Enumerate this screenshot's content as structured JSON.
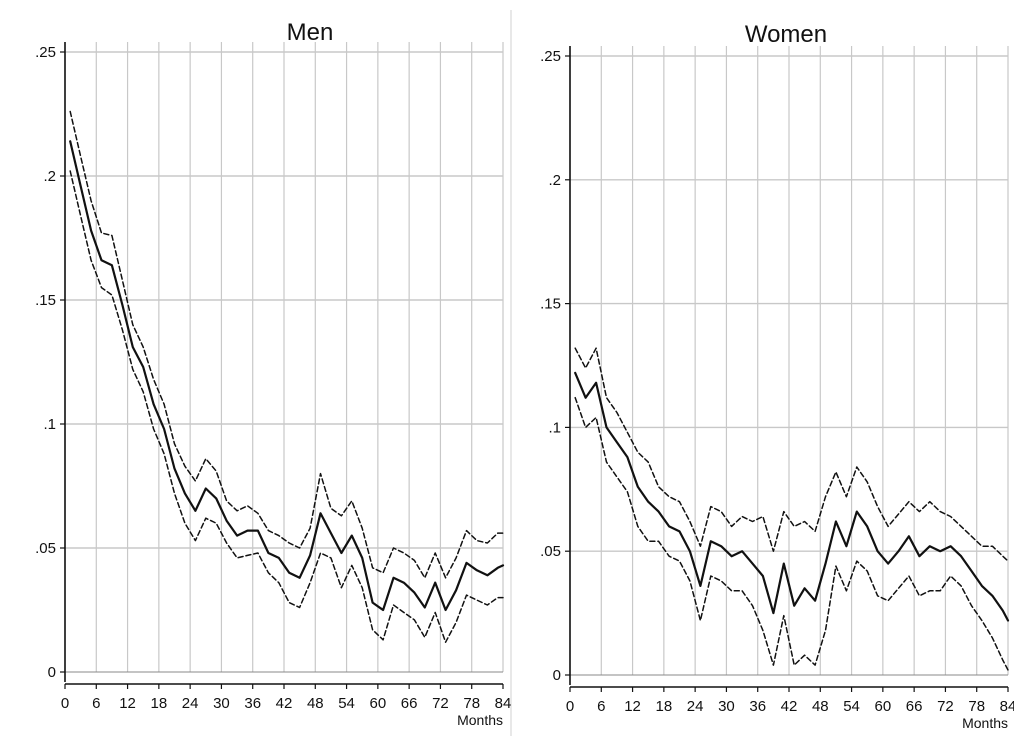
{
  "chart_data": [
    {
      "type": "line",
      "title": "Men",
      "xlabel": "Months",
      "ylabel": "",
      "xlim": [
        0,
        84
      ],
      "ylim": [
        0,
        0.25
      ],
      "xticks": [
        "0",
        "6",
        "12",
        "18",
        "24",
        "30",
        "36",
        "42",
        "48",
        "54",
        "60",
        "66",
        "72",
        "78",
        "84"
      ],
      "yticks": [
        "0",
        ".05",
        ".1",
        ".15",
        ".2",
        ".25"
      ],
      "grid": true,
      "x": [
        1,
        3,
        5,
        7,
        9,
        11,
        13,
        15,
        17,
        19,
        21,
        23,
        25,
        27,
        29,
        31,
        33,
        35,
        37,
        39,
        41,
        43,
        45,
        47,
        49,
        51,
        53,
        55,
        57,
        59,
        61,
        63,
        65,
        67,
        69,
        71,
        73,
        75,
        77,
        79,
        81,
        83,
        84
      ],
      "series": [
        {
          "role": "estimate",
          "values": [
            0.214,
            0.196,
            0.178,
            0.166,
            0.164,
            0.148,
            0.131,
            0.123,
            0.108,
            0.098,
            0.082,
            0.072,
            0.065,
            0.074,
            0.07,
            0.061,
            0.055,
            0.057,
            0.057,
            0.048,
            0.046,
            0.04,
            0.038,
            0.047,
            0.064,
            0.056,
            0.048,
            0.055,
            0.046,
            0.028,
            0.025,
            0.038,
            0.036,
            0.032,
            0.026,
            0.036,
            0.025,
            0.033,
            0.044,
            0.041,
            0.039,
            0.042,
            0.043
          ]
        },
        {
          "role": "upper",
          "values": [
            0.226,
            0.208,
            0.19,
            0.177,
            0.176,
            0.158,
            0.14,
            0.131,
            0.118,
            0.108,
            0.092,
            0.083,
            0.077,
            0.086,
            0.081,
            0.069,
            0.065,
            0.067,
            0.064,
            0.057,
            0.055,
            0.052,
            0.05,
            0.058,
            0.08,
            0.066,
            0.063,
            0.069,
            0.058,
            0.042,
            0.04,
            0.05,
            0.048,
            0.045,
            0.038,
            0.048,
            0.038,
            0.046,
            0.057,
            0.053,
            0.052,
            0.056,
            0.056
          ]
        },
        {
          "role": "lower",
          "values": [
            0.202,
            0.184,
            0.166,
            0.155,
            0.152,
            0.138,
            0.122,
            0.113,
            0.098,
            0.088,
            0.072,
            0.06,
            0.053,
            0.062,
            0.06,
            0.052,
            0.046,
            0.047,
            0.048,
            0.04,
            0.036,
            0.028,
            0.026,
            0.036,
            0.048,
            0.046,
            0.034,
            0.043,
            0.034,
            0.017,
            0.013,
            0.027,
            0.024,
            0.021,
            0.014,
            0.024,
            0.012,
            0.02,
            0.031,
            0.029,
            0.027,
            0.03,
            0.03
          ]
        }
      ]
    },
    {
      "type": "line",
      "title": "Women",
      "xlabel": "Months",
      "ylabel": "",
      "xlim": [
        0,
        84
      ],
      "ylim": [
        0,
        0.25
      ],
      "xticks": [
        "0",
        "6",
        "12",
        "18",
        "24",
        "30",
        "36",
        "42",
        "48",
        "54",
        "60",
        "66",
        "72",
        "78",
        "84"
      ],
      "yticks": [
        "0",
        ".05",
        ".1",
        ".15",
        ".2",
        ".25"
      ],
      "grid": true,
      "x": [
        1,
        3,
        5,
        7,
        9,
        11,
        13,
        15,
        17,
        19,
        21,
        23,
        25,
        27,
        29,
        31,
        33,
        35,
        37,
        39,
        41,
        43,
        45,
        47,
        49,
        51,
        53,
        55,
        57,
        59,
        61,
        63,
        65,
        67,
        69,
        71,
        73,
        75,
        77,
        79,
        81,
        83,
        84
      ],
      "series": [
        {
          "role": "estimate",
          "values": [
            0.122,
            0.112,
            0.118,
            0.1,
            0.094,
            0.088,
            0.076,
            0.07,
            0.066,
            0.06,
            0.058,
            0.05,
            0.036,
            0.054,
            0.052,
            0.048,
            0.05,
            0.045,
            0.04,
            0.025,
            0.045,
            0.028,
            0.035,
            0.03,
            0.045,
            0.062,
            0.052,
            0.066,
            0.06,
            0.05,
            0.045,
            0.05,
            0.056,
            0.048,
            0.052,
            0.05,
            0.052,
            0.048,
            0.042,
            0.036,
            0.032,
            0.026,
            0.022
          ]
        },
        {
          "role": "upper",
          "values": [
            0.132,
            0.124,
            0.132,
            0.112,
            0.106,
            0.098,
            0.09,
            0.086,
            0.076,
            0.072,
            0.07,
            0.062,
            0.052,
            0.068,
            0.066,
            0.06,
            0.064,
            0.062,
            0.064,
            0.05,
            0.066,
            0.06,
            0.062,
            0.058,
            0.072,
            0.082,
            0.072,
            0.084,
            0.078,
            0.068,
            0.06,
            0.065,
            0.07,
            0.066,
            0.07,
            0.066,
            0.064,
            0.06,
            0.056,
            0.052,
            0.052,
            0.048,
            0.046
          ]
        },
        {
          "role": "lower",
          "values": [
            0.112,
            0.1,
            0.104,
            0.086,
            0.08,
            0.074,
            0.06,
            0.054,
            0.054,
            0.048,
            0.046,
            0.038,
            0.022,
            0.04,
            0.038,
            0.034,
            0.034,
            0.028,
            0.018,
            0.004,
            0.024,
            0.004,
            0.008,
            0.004,
            0.018,
            0.044,
            0.034,
            0.046,
            0.042,
            0.032,
            0.03,
            0.035,
            0.04,
            0.032,
            0.034,
            0.034,
            0.04,
            0.036,
            0.028,
            0.022,
            0.015,
            0.006,
            0.002
          ]
        }
      ]
    }
  ]
}
